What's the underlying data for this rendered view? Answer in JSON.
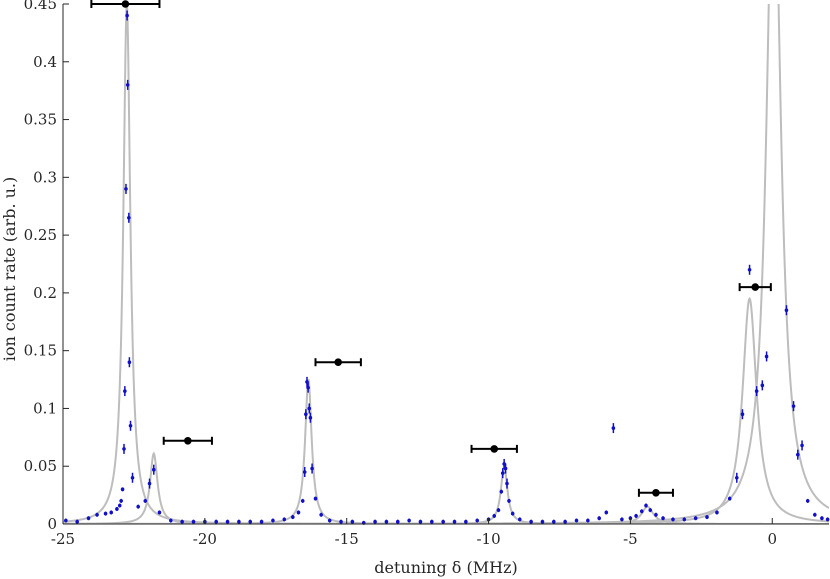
{
  "chart_data": {
    "type": "scatter",
    "xlabel": "detuning δ (MHz)",
    "ylabel": "ion count rate (arb. u.)",
    "xlim": [
      -25,
      2
    ],
    "ylim": [
      0,
      0.45
    ],
    "xticks": [
      -25,
      -20,
      -15,
      -10,
      -5,
      0
    ],
    "yticks": [
      0,
      0.05,
      0.1,
      0.15,
      0.2,
      0.25,
      0.3,
      0.35,
      0.4,
      0.45
    ],
    "xtick_labels": [
      "-25",
      "-20",
      "-15",
      "-10",
      "-5",
      "0"
    ],
    "ytick_labels": [
      "0",
      "0.05",
      "0.1",
      "0.15",
      "0.2",
      "0.25",
      "0.3",
      "0.35",
      "0.4",
      "0.45"
    ],
    "grid": false,
    "colors": {
      "data": "#1010c8",
      "fit": "#bdbdbd",
      "markers": "#000000",
      "axes": "#262626"
    },
    "fit_curves": [
      {
        "center": -22.75,
        "amplitude": 0.45,
        "width": 0.15
      },
      {
        "center": -21.8,
        "amplitude": 0.061,
        "width": 0.16
      },
      {
        "center": -16.35,
        "amplitude": 0.125,
        "width": 0.14
      },
      {
        "center": -9.45,
        "amplitude": 0.05,
        "width": 0.14
      },
      {
        "center": -4.4,
        "amplitude": 0.015,
        "width": 0.25
      },
      {
        "center": -0.8,
        "amplitude": 0.195,
        "width": 0.3
      },
      {
        "center": 0.05,
        "amplitude": 0.6,
        "width": 0.3
      }
    ],
    "reference_points": [
      {
        "x": -22.8,
        "y": 0.45,
        "xerr": 1.2
      },
      {
        "x": -20.6,
        "y": 0.072,
        "xerr": 0.85
      },
      {
        "x": -15.3,
        "y": 0.14,
        "xerr": 0.8
      },
      {
        "x": -9.8,
        "y": 0.065,
        "xerr": 0.8
      },
      {
        "x": -4.1,
        "y": 0.027,
        "xerr": 0.6
      },
      {
        "x": -0.6,
        "y": 0.205,
        "xerr": 0.55
      }
    ],
    "data_points": [
      {
        "x": -24.9,
        "y": 0.003
      },
      {
        "x": -24.5,
        "y": 0.002
      },
      {
        "x": -24.1,
        "y": 0.005
      },
      {
        "x": -23.8,
        "y": 0.008
      },
      {
        "x": -23.5,
        "y": 0.009
      },
      {
        "x": -23.3,
        "y": 0.01
      },
      {
        "x": -23.1,
        "y": 0.013
      },
      {
        "x": -23.0,
        "y": 0.016
      },
      {
        "x": -22.95,
        "y": 0.02
      },
      {
        "x": -22.9,
        "y": 0.03
      },
      {
        "x": -22.85,
        "y": 0.065
      },
      {
        "x": -22.82,
        "y": 0.115
      },
      {
        "x": -22.78,
        "y": 0.29
      },
      {
        "x": -22.74,
        "y": 0.44
      },
      {
        "x": -22.72,
        "y": 0.38
      },
      {
        "x": -22.68,
        "y": 0.265
      },
      {
        "x": -22.66,
        "y": 0.14
      },
      {
        "x": -22.62,
        "y": 0.085
      },
      {
        "x": -22.55,
        "y": 0.04
      },
      {
        "x": -22.35,
        "y": 0.015
      },
      {
        "x": -22.1,
        "y": 0.02
      },
      {
        "x": -21.95,
        "y": 0.035
      },
      {
        "x": -21.8,
        "y": 0.047
      },
      {
        "x": -21.6,
        "y": 0.01
      },
      {
        "x": -21.2,
        "y": 0.003
      },
      {
        "x": -20.8,
        "y": 0.002
      },
      {
        "x": -20.4,
        "y": 0.002
      },
      {
        "x": -20.0,
        "y": 0.002
      },
      {
        "x": -19.6,
        "y": 0.002
      },
      {
        "x": -19.2,
        "y": 0.002
      },
      {
        "x": -18.8,
        "y": 0.002
      },
      {
        "x": -18.4,
        "y": 0.002
      },
      {
        "x": -18.0,
        "y": 0.002
      },
      {
        "x": -17.6,
        "y": 0.003
      },
      {
        "x": -17.2,
        "y": 0.004
      },
      {
        "x": -16.9,
        "y": 0.006
      },
      {
        "x": -16.7,
        "y": 0.01
      },
      {
        "x": -16.55,
        "y": 0.02
      },
      {
        "x": -16.48,
        "y": 0.045
      },
      {
        "x": -16.44,
        "y": 0.095
      },
      {
        "x": -16.4,
        "y": 0.123
      },
      {
        "x": -16.36,
        "y": 0.118
      },
      {
        "x": -16.32,
        "y": 0.1
      },
      {
        "x": -16.28,
        "y": 0.092
      },
      {
        "x": -16.22,
        "y": 0.048
      },
      {
        "x": -16.1,
        "y": 0.022
      },
      {
        "x": -15.9,
        "y": 0.008
      },
      {
        "x": -15.6,
        "y": 0.003
      },
      {
        "x": -15.2,
        "y": 0.002
      },
      {
        "x": -14.8,
        "y": 0.002
      },
      {
        "x": -14.4,
        "y": 0.001
      },
      {
        "x": -14.0,
        "y": 0.002
      },
      {
        "x": -13.6,
        "y": 0.002
      },
      {
        "x": -13.2,
        "y": 0.002
      },
      {
        "x": -12.8,
        "y": 0.003
      },
      {
        "x": -12.4,
        "y": 0.002
      },
      {
        "x": -12.0,
        "y": 0.002
      },
      {
        "x": -11.6,
        "y": 0.002
      },
      {
        "x": -11.2,
        "y": 0.002
      },
      {
        "x": -10.8,
        "y": 0.002
      },
      {
        "x": -10.4,
        "y": 0.003
      },
      {
        "x": -10.0,
        "y": 0.004
      },
      {
        "x": -9.8,
        "y": 0.007
      },
      {
        "x": -9.65,
        "y": 0.012
      },
      {
        "x": -9.55,
        "y": 0.028
      },
      {
        "x": -9.5,
        "y": 0.044
      },
      {
        "x": -9.45,
        "y": 0.052
      },
      {
        "x": -9.4,
        "y": 0.048
      },
      {
        "x": -9.35,
        "y": 0.035
      },
      {
        "x": -9.28,
        "y": 0.02
      },
      {
        "x": -9.15,
        "y": 0.009
      },
      {
        "x": -8.9,
        "y": 0.004
      },
      {
        "x": -8.5,
        "y": 0.002
      },
      {
        "x": -8.1,
        "y": 0.002
      },
      {
        "x": -7.7,
        "y": 0.002
      },
      {
        "x": -7.3,
        "y": 0.002
      },
      {
        "x": -6.9,
        "y": 0.003
      },
      {
        "x": -6.5,
        "y": 0.003
      },
      {
        "x": -6.1,
        "y": 0.005
      },
      {
        "x": -5.85,
        "y": 0.01
      },
      {
        "x": -5.6,
        "y": 0.083
      },
      {
        "x": -5.3,
        "y": 0.004
      },
      {
        "x": -5.0,
        "y": 0.005
      },
      {
        "x": -4.8,
        "y": 0.007
      },
      {
        "x": -4.6,
        "y": 0.011
      },
      {
        "x": -4.45,
        "y": 0.016
      },
      {
        "x": -4.3,
        "y": 0.012
      },
      {
        "x": -4.1,
        "y": 0.008
      },
      {
        "x": -3.85,
        "y": 0.005
      },
      {
        "x": -3.5,
        "y": 0.004
      },
      {
        "x": -3.1,
        "y": 0.004
      },
      {
        "x": -2.7,
        "y": 0.005
      },
      {
        "x": -2.3,
        "y": 0.006
      },
      {
        "x": -1.95,
        "y": 0.01
      },
      {
        "x": -1.5,
        "y": 0.022
      },
      {
        "x": -1.25,
        "y": 0.04
      },
      {
        "x": -1.05,
        "y": 0.095
      },
      {
        "x": -0.8,
        "y": 0.22
      },
      {
        "x": -0.55,
        "y": 0.115
      },
      {
        "x": -0.35,
        "y": 0.12
      },
      {
        "x": -0.2,
        "y": 0.145
      },
      {
        "x": 0.5,
        "y": 0.185
      },
      {
        "x": 0.75,
        "y": 0.102
      },
      {
        "x": 0.9,
        "y": 0.06
      },
      {
        "x": 1.05,
        "y": 0.068
      },
      {
        "x": 1.25,
        "y": 0.02
      },
      {
        "x": 1.5,
        "y": 0.008
      },
      {
        "x": 1.75,
        "y": 0.005
      },
      {
        "x": 1.95,
        "y": 0.004
      }
    ]
  }
}
